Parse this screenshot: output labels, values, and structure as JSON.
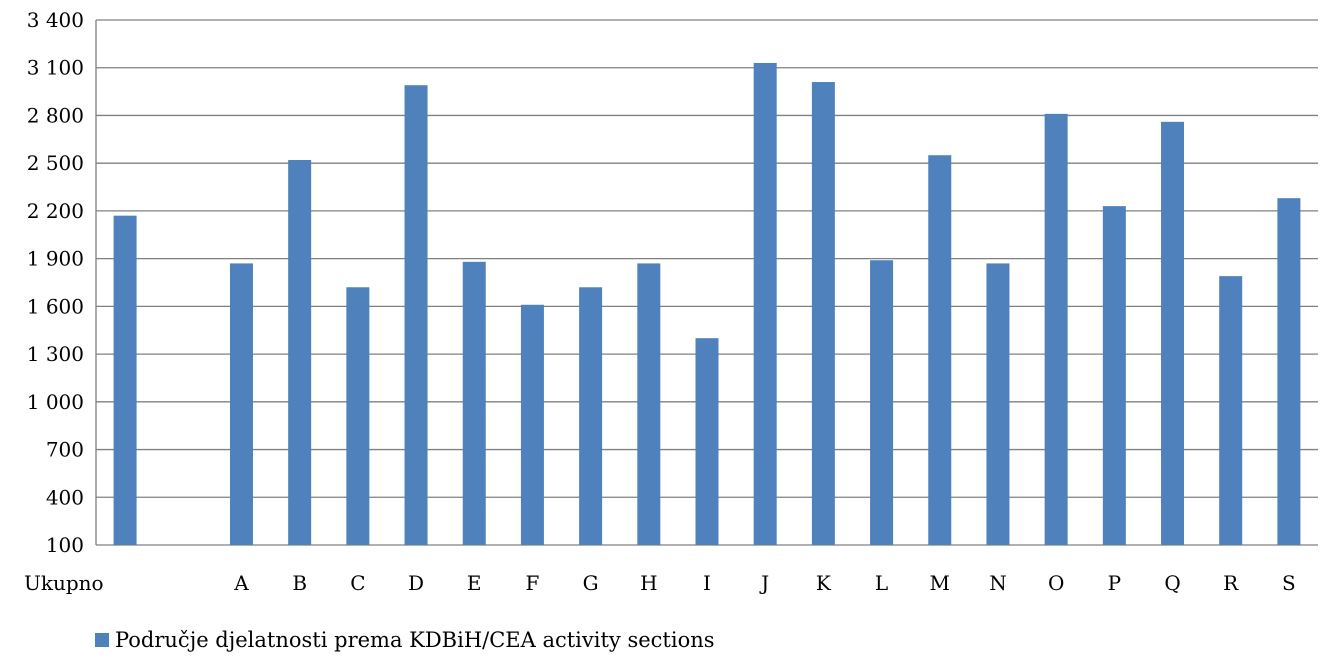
{
  "chart_data": {
    "type": "bar",
    "categories": [
      "Ukupno",
      "",
      "A",
      "B",
      "C",
      "D",
      "E",
      "F",
      "G",
      "H",
      "I",
      "J",
      "K",
      "L",
      "M",
      "N",
      "O",
      "P",
      "Q",
      "R",
      "S"
    ],
    "series": [
      {
        "name": "Područje djelatnosti prema KDBiH/CEA activity sections",
        "values": [
          2170,
          null,
          1870,
          2520,
          1720,
          2990,
          1880,
          1610,
          1720,
          1870,
          1400,
          3130,
          3010,
          1890,
          2550,
          1870,
          2810,
          2230,
          2760,
          1790,
          2280
        ]
      }
    ],
    "ylim": [
      100,
      3400
    ],
    "yticks": [
      100,
      400,
      700,
      1000,
      1300,
      1600,
      1900,
      2200,
      2500,
      2800,
      3100,
      3400
    ],
    "ytick_labels": [
      "100",
      "400",
      "700",
      "1 000",
      "1 300",
      "1 600",
      "1 900",
      "2 200",
      "2 500",
      "2 800",
      "3 100",
      "3 400"
    ],
    "grid": true,
    "legend_position": "bottom-left",
    "bar_color": "#4f81bd",
    "title": "",
    "xlabel": "",
    "ylabel": ""
  }
}
